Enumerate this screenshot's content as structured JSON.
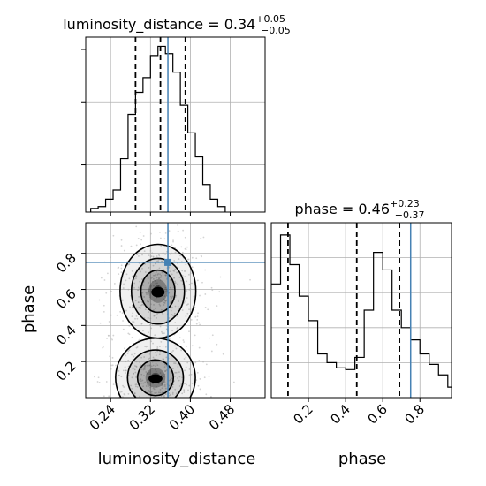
{
  "chart_data": [
    {
      "type": "histogram",
      "panel": "luminosity_distance-marginal",
      "title": {
        "param": "luminosity_distance",
        "median": "0.34",
        "plus": "+0.05",
        "minus": "−0.05"
      },
      "xlim": [
        0.19,
        0.55
      ],
      "bins": [
        0.2,
        0.215,
        0.23,
        0.245,
        0.26,
        0.275,
        0.29,
        0.305,
        0.32,
        0.335,
        0.35,
        0.365,
        0.38,
        0.395,
        0.41,
        0.425,
        0.44,
        0.455,
        0.47
      ],
      "counts": [
        0.02,
        0.03,
        0.07,
        0.12,
        0.29,
        0.53,
        0.65,
        0.73,
        0.85,
        0.9,
        0.86,
        0.76,
        0.58,
        0.43,
        0.3,
        0.15,
        0.07,
        0.03
      ],
      "quantiles": [
        0.29,
        0.34,
        0.39
      ],
      "truth": 0.355,
      "grid": true,
      "colors": {
        "hist": "#000000",
        "quantile": "#000000",
        "truth": "#4682b4"
      }
    },
    {
      "type": "histogram",
      "panel": "phase-marginal",
      "title": {
        "param": "phase",
        "median": "0.46",
        "plus": "+0.23",
        "minus": "−0.37"
      },
      "xlim": [
        0.0,
        0.97
      ],
      "xticks": [
        "0.2",
        "0.4",
        "0.6",
        "0.8"
      ],
      "xlabel": "phase",
      "bins": [
        0.0,
        0.05,
        0.1,
        0.15,
        0.2,
        0.25,
        0.3,
        0.35,
        0.4,
        0.45,
        0.5,
        0.55,
        0.6,
        0.65,
        0.7,
        0.75,
        0.8,
        0.85,
        0.9,
        0.95,
        1.0
      ],
      "counts": [
        0.65,
        0.93,
        0.76,
        0.58,
        0.44,
        0.25,
        0.2,
        0.17,
        0.16,
        0.23,
        0.5,
        0.83,
        0.73,
        0.5,
        0.4,
        0.33,
        0.25,
        0.19,
        0.13,
        0.06
      ],
      "quantiles": [
        0.09,
        0.46,
        0.69
      ],
      "truth": 0.75,
      "grid": true,
      "colors": {
        "hist": "#000000",
        "quantile": "#000000",
        "truth": "#4682b4"
      }
    },
    {
      "type": "heatmap",
      "panel": "2d-posterior",
      "xlabel": "luminosity_distance",
      "ylabel": "phase",
      "xlim": [
        0.19,
        0.55
      ],
      "ylim": [
        0.0,
        0.97
      ],
      "xticks": [
        "0.24",
        "0.32",
        "0.40",
        "0.48"
      ],
      "yticks": [
        "0.2",
        "0.4",
        "0.6",
        "0.8"
      ],
      "modes": [
        {
          "x": 0.335,
          "y": 0.59,
          "sx": 0.038,
          "sy": 0.13
        },
        {
          "x": 0.33,
          "y": 0.11,
          "sx": 0.04,
          "sy": 0.11
        }
      ],
      "truth": {
        "x": 0.355,
        "y": 0.75
      },
      "grid": true,
      "colors": {
        "contour": "#000000",
        "density": "#000000",
        "points": "#b0b0b0",
        "truth": "#4682b4"
      }
    }
  ]
}
